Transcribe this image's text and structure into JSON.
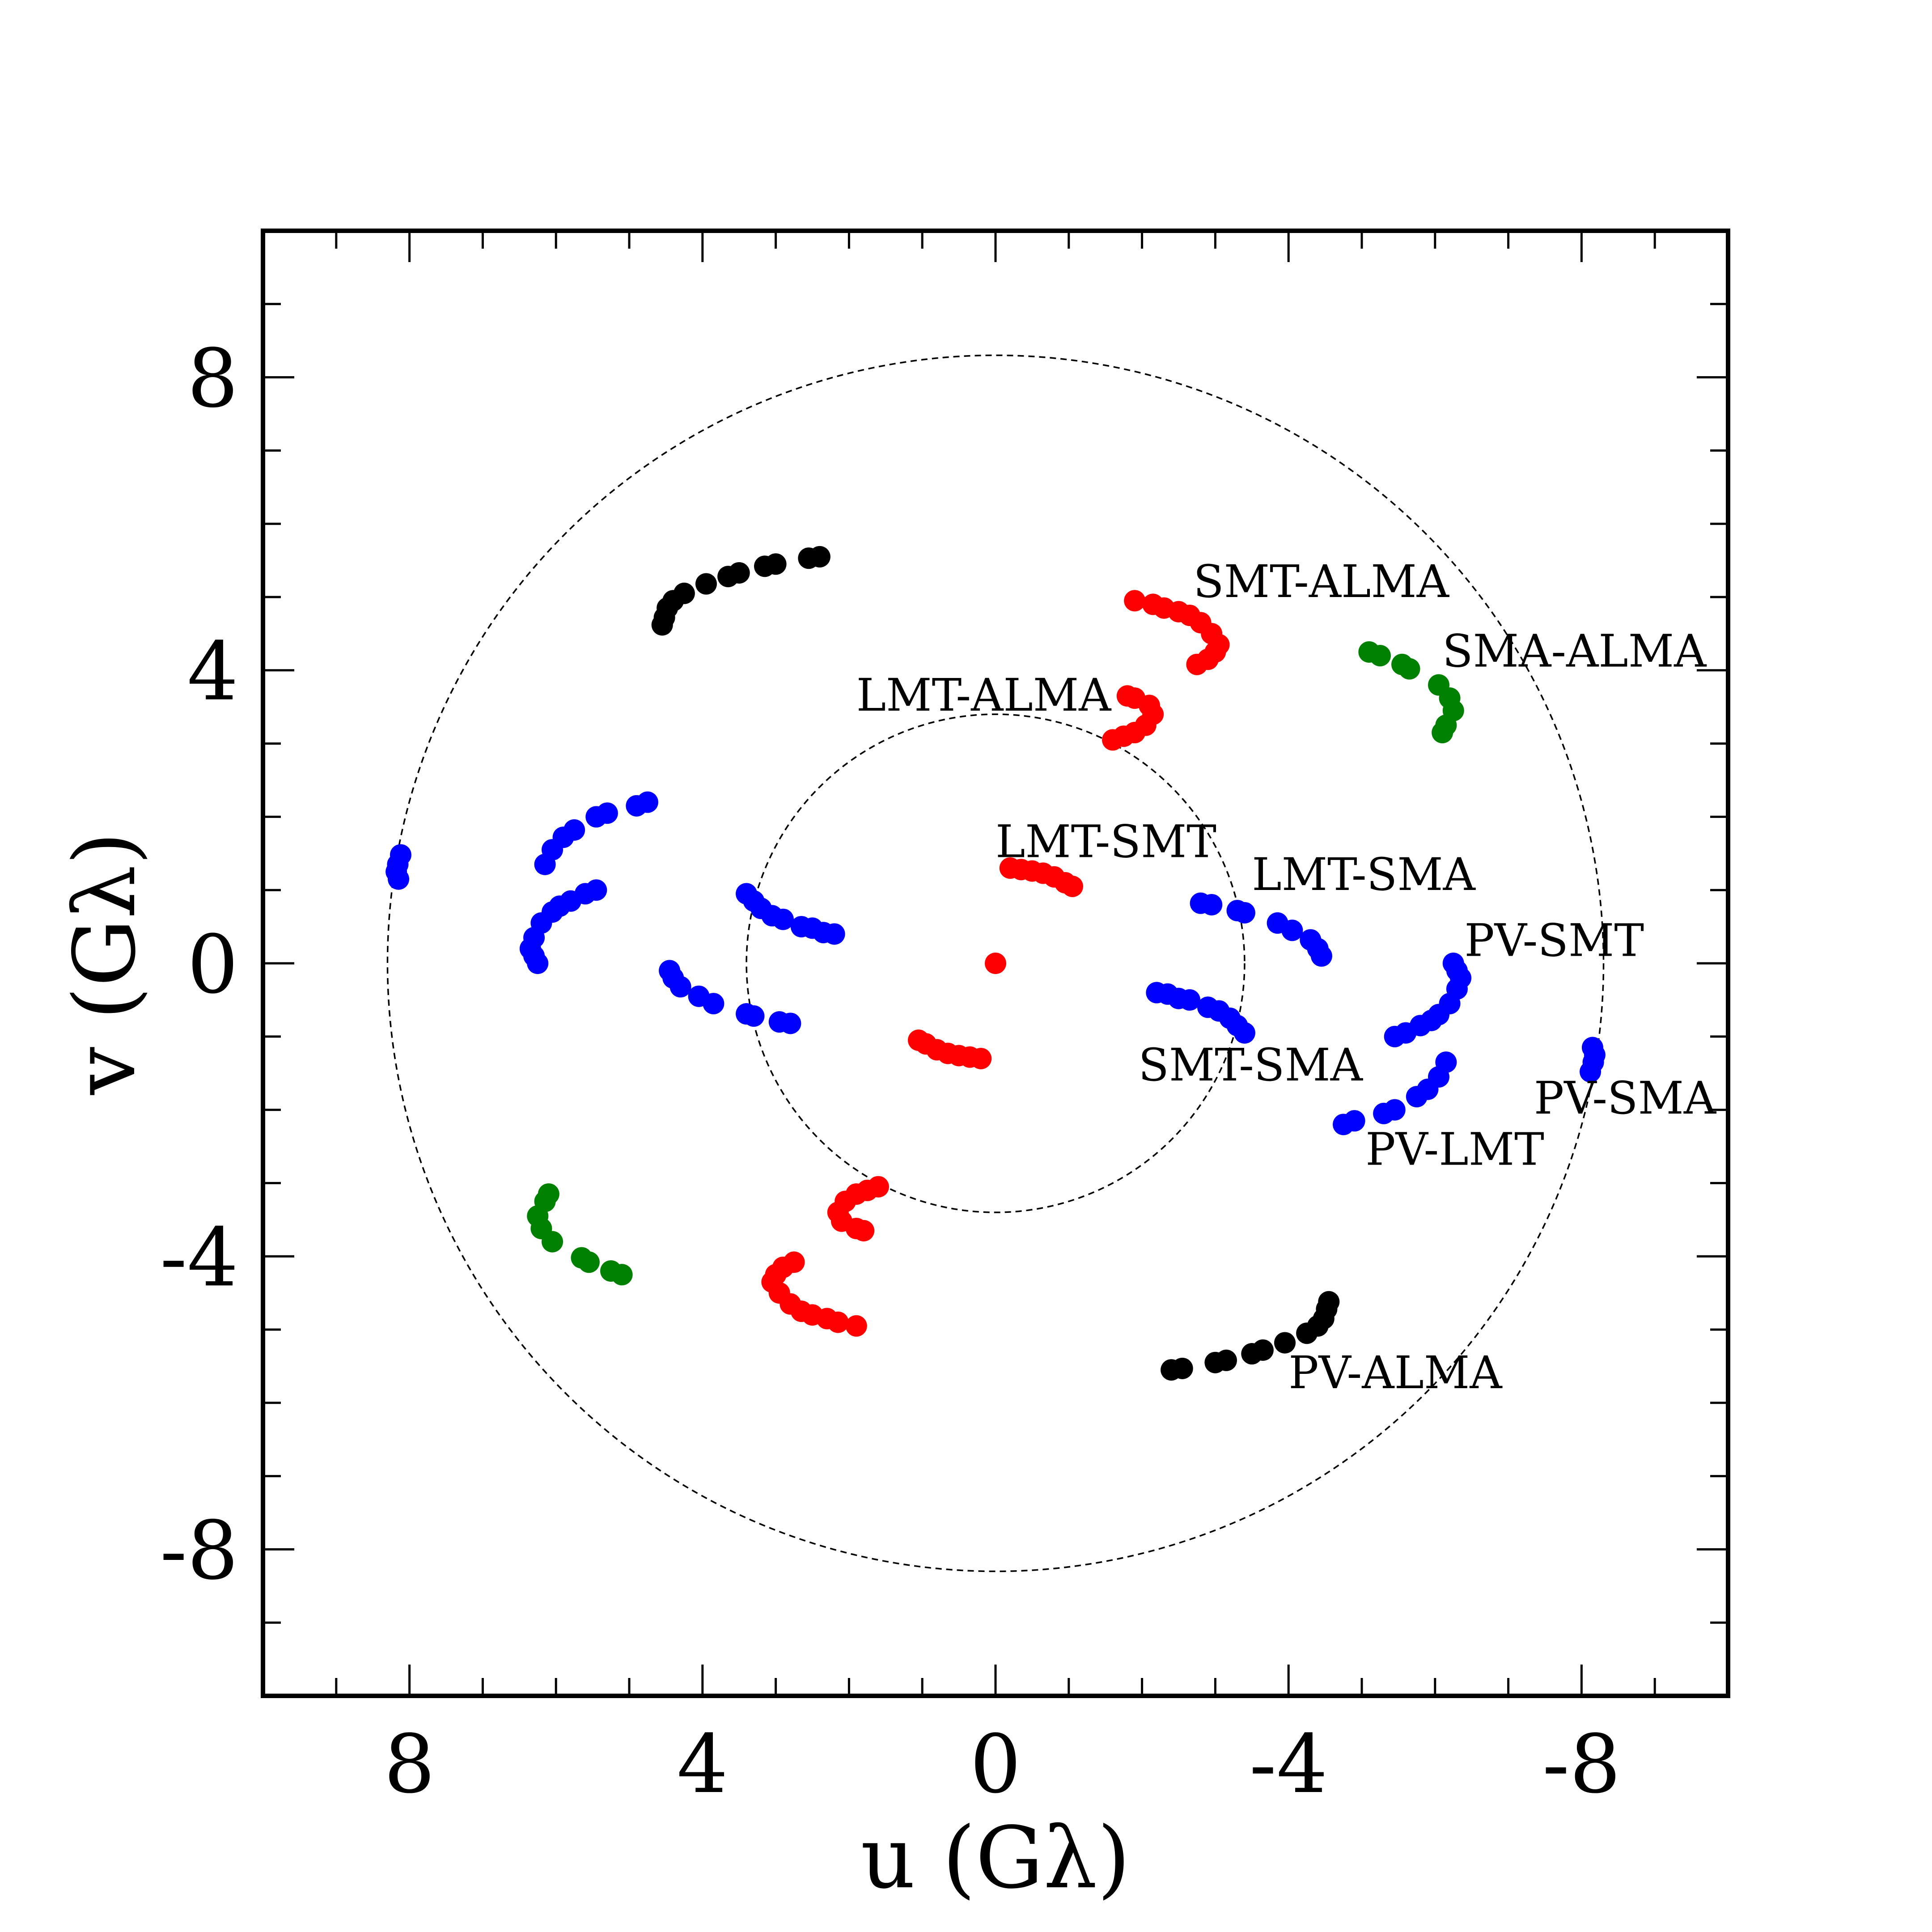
{
  "chart_data": {
    "type": "scatter",
    "title": "",
    "xlabel": "u (Gλ)",
    "ylabel": "v (Gλ)",
    "xlim": [
      10,
      -10
    ],
    "ylim": [
      -10,
      10
    ],
    "x_inverted": true,
    "xticks": [
      8,
      4,
      0,
      -4,
      -8
    ],
    "xtick_labels": [
      "8",
      "4",
      "0",
      "-4",
      "-8"
    ],
    "yticks": [
      8,
      4,
      0,
      -4,
      -8
    ],
    "ytick_labels": [
      "8",
      "4",
      "0",
      "-4",
      "-8"
    ],
    "grid": false,
    "rings": [
      {
        "radius": 3.4,
        "style": "dashed"
      },
      {
        "radius": 8.3,
        "style": "dashed"
      }
    ],
    "series": [
      {
        "color": "#ff0000",
        "points": [
          [
            0,
            0
          ],
          [
            -0.2,
            1.3
          ],
          [
            -0.35,
            1.28
          ],
          [
            -0.5,
            1.26
          ],
          [
            -0.65,
            1.23
          ],
          [
            -0.8,
            1.18
          ],
          [
            -0.95,
            1.1
          ],
          [
            -1.05,
            1.05
          ],
          [
            0.2,
            -1.3
          ],
          [
            0.35,
            -1.28
          ],
          [
            0.5,
            -1.26
          ],
          [
            0.65,
            -1.23
          ],
          [
            0.8,
            -1.18
          ],
          [
            0.95,
            -1.1
          ],
          [
            1.05,
            -1.05
          ],
          [
            -1.6,
            3.05
          ],
          [
            -1.75,
            3.1
          ],
          [
            -1.9,
            3.15
          ],
          [
            -2.05,
            3.25
          ],
          [
            -2.15,
            3.4
          ],
          [
            -2.1,
            3.52
          ],
          [
            -1.9,
            3.62
          ],
          [
            -1.8,
            3.65
          ],
          [
            1.6,
            -3.05
          ],
          [
            1.75,
            -3.1
          ],
          [
            1.9,
            -3.15
          ],
          [
            2.05,
            -3.25
          ],
          [
            2.15,
            -3.4
          ],
          [
            2.1,
            -3.52
          ],
          [
            1.9,
            -3.62
          ],
          [
            1.8,
            -3.65
          ],
          [
            -1.9,
            4.95
          ],
          [
            -2.15,
            4.9
          ],
          [
            -2.3,
            4.85
          ],
          [
            -2.5,
            4.8
          ],
          [
            -2.65,
            4.75
          ],
          [
            -2.8,
            4.65
          ],
          [
            -2.95,
            4.5
          ],
          [
            -3.05,
            4.35
          ],
          [
            -3.0,
            4.25
          ],
          [
            -2.9,
            4.15
          ],
          [
            -2.75,
            4.08
          ],
          [
            1.9,
            -4.95
          ],
          [
            2.15,
            -4.9
          ],
          [
            2.3,
            -4.85
          ],
          [
            2.5,
            -4.8
          ],
          [
            2.65,
            -4.75
          ],
          [
            2.8,
            -4.65
          ],
          [
            2.95,
            -4.5
          ],
          [
            3.05,
            -4.35
          ],
          [
            3.0,
            -4.25
          ],
          [
            2.9,
            -4.15
          ],
          [
            2.75,
            -4.08
          ]
        ]
      },
      {
        "color": "#0000ff",
        "points": [
          [
            -2.2,
            -0.4
          ],
          [
            -2.35,
            -0.42
          ],
          [
            -2.5,
            -0.48
          ],
          [
            -2.65,
            -0.5
          ],
          [
            -2.9,
            -0.6
          ],
          [
            -3.05,
            -0.65
          ],
          [
            -3.2,
            -0.75
          ],
          [
            -3.3,
            -0.85
          ],
          [
            -3.4,
            -0.95
          ],
          [
            2.2,
            0.4
          ],
          [
            2.35,
            0.42
          ],
          [
            2.5,
            0.48
          ],
          [
            2.65,
            0.5
          ],
          [
            2.9,
            0.6
          ],
          [
            3.05,
            0.65
          ],
          [
            3.2,
            0.75
          ],
          [
            3.3,
            0.85
          ],
          [
            3.4,
            0.95
          ],
          [
            -2.8,
            0.82
          ],
          [
            -2.95,
            0.8
          ],
          [
            -3.3,
            0.72
          ],
          [
            -3.4,
            0.69
          ],
          [
            -3.85,
            0.55
          ],
          [
            -4.05,
            0.45
          ],
          [
            -4.3,
            0.32
          ],
          [
            -4.4,
            0.2
          ],
          [
            -4.45,
            0.1
          ],
          [
            2.8,
            -0.82
          ],
          [
            2.95,
            -0.8
          ],
          [
            3.3,
            -0.72
          ],
          [
            3.4,
            -0.69
          ],
          [
            3.85,
            -0.55
          ],
          [
            4.05,
            -0.45
          ],
          [
            4.3,
            -0.32
          ],
          [
            4.4,
            -0.2
          ],
          [
            4.45,
            -0.1
          ],
          [
            -6.25,
            0.0
          ],
          [
            -6.3,
            -0.1
          ],
          [
            -6.35,
            -0.2
          ],
          [
            -6.3,
            -0.35
          ],
          [
            -6.2,
            -0.55
          ],
          [
            -6.05,
            -0.7
          ],
          [
            -5.95,
            -0.78
          ],
          [
            -5.8,
            -0.85
          ],
          [
            -5.6,
            -0.95
          ],
          [
            -5.45,
            -1.0
          ],
          [
            6.25,
            0.0
          ],
          [
            6.3,
            0.1
          ],
          [
            6.35,
            0.2
          ],
          [
            6.3,
            0.35
          ],
          [
            6.2,
            0.55
          ],
          [
            6.05,
            0.7
          ],
          [
            5.95,
            0.78
          ],
          [
            5.8,
            0.85
          ],
          [
            5.6,
            0.95
          ],
          [
            5.45,
            1.0
          ],
          [
            -6.15,
            -1.35
          ],
          [
            -6.05,
            -1.55
          ],
          [
            -5.9,
            -1.72
          ],
          [
            -5.75,
            -1.82
          ],
          [
            -5.45,
            -2.0
          ],
          [
            -5.3,
            -2.05
          ],
          [
            -4.9,
            -2.15
          ],
          [
            -4.75,
            -2.2
          ],
          [
            6.15,
            1.35
          ],
          [
            6.05,
            1.55
          ],
          [
            5.9,
            1.72
          ],
          [
            5.75,
            1.82
          ],
          [
            5.45,
            2.0
          ],
          [
            5.3,
            2.05
          ],
          [
            4.9,
            2.15
          ],
          [
            4.75,
            2.2
          ],
          [
            -8.15,
            -1.15
          ],
          [
            -8.18,
            -1.25
          ],
          [
            -8.16,
            -1.35
          ],
          [
            -8.12,
            -1.48
          ],
          [
            8.15,
            1.15
          ],
          [
            8.18,
            1.25
          ],
          [
            8.16,
            1.35
          ],
          [
            8.12,
            1.48
          ]
        ]
      },
      {
        "color": "#008000",
        "points": [
          [
            -5.1,
            4.25
          ],
          [
            -5.25,
            4.2
          ],
          [
            -5.55,
            4.08
          ],
          [
            -5.65,
            4.02
          ],
          [
            -6.05,
            3.8
          ],
          [
            -6.2,
            3.62
          ],
          [
            -6.25,
            3.45
          ],
          [
            -6.15,
            3.25
          ],
          [
            -6.1,
            3.15
          ],
          [
            5.1,
            -4.25
          ],
          [
            5.25,
            -4.2
          ],
          [
            5.55,
            -4.08
          ],
          [
            5.65,
            -4.02
          ],
          [
            6.05,
            -3.8
          ],
          [
            6.2,
            -3.62
          ],
          [
            6.25,
            -3.45
          ],
          [
            6.15,
            -3.25
          ],
          [
            6.1,
            -3.15
          ]
        ]
      },
      {
        "color": "#000000",
        "points": [
          [
            2.4,
            5.55
          ],
          [
            2.55,
            5.53
          ],
          [
            3.0,
            5.45
          ],
          [
            3.15,
            5.42
          ],
          [
            3.5,
            5.33
          ],
          [
            3.65,
            5.28
          ],
          [
            3.95,
            5.18
          ],
          [
            4.25,
            5.05
          ],
          [
            4.4,
            4.95
          ],
          [
            4.48,
            4.85
          ],
          [
            4.52,
            4.72
          ],
          [
            4.55,
            4.62
          ],
          [
            -2.4,
            -5.55
          ],
          [
            -2.55,
            -5.53
          ],
          [
            -3.0,
            -5.45
          ],
          [
            -3.15,
            -5.42
          ],
          [
            -3.5,
            -5.33
          ],
          [
            -3.65,
            -5.28
          ],
          [
            -3.95,
            -5.18
          ],
          [
            -4.25,
            -5.05
          ],
          [
            -4.4,
            -4.95
          ],
          [
            -4.48,
            -4.85
          ],
          [
            -4.52,
            -4.72
          ],
          [
            -4.55,
            -4.62
          ]
        ]
      }
    ],
    "annotations": [
      {
        "text": "SMT-ALMA",
        "x": -2.7,
        "y": 5.0
      },
      {
        "text": "SMA-ALMA",
        "x": -6.1,
        "y": 4.05
      },
      {
        "text": "LMT-ALMA",
        "x": 1.9,
        "y": 3.45
      },
      {
        "text": "LMT-SMT",
        "x": 0.0,
        "y": 1.45
      },
      {
        "text": "LMT-SMA",
        "x": -3.5,
        "y": 1.0
      },
      {
        "text": "PV-SMT",
        "x": -6.4,
        "y": 0.1
      },
      {
        "text": "SMT-SMA",
        "x": -1.95,
        "y": -1.6
      },
      {
        "text": "PV-SMA",
        "x": -7.35,
        "y": -2.05
      },
      {
        "text": "PV-LMT",
        "x": -5.05,
        "y": -2.75
      },
      {
        "text": "PV-ALMA",
        "x": -4.0,
        "y": -5.8
      }
    ]
  }
}
